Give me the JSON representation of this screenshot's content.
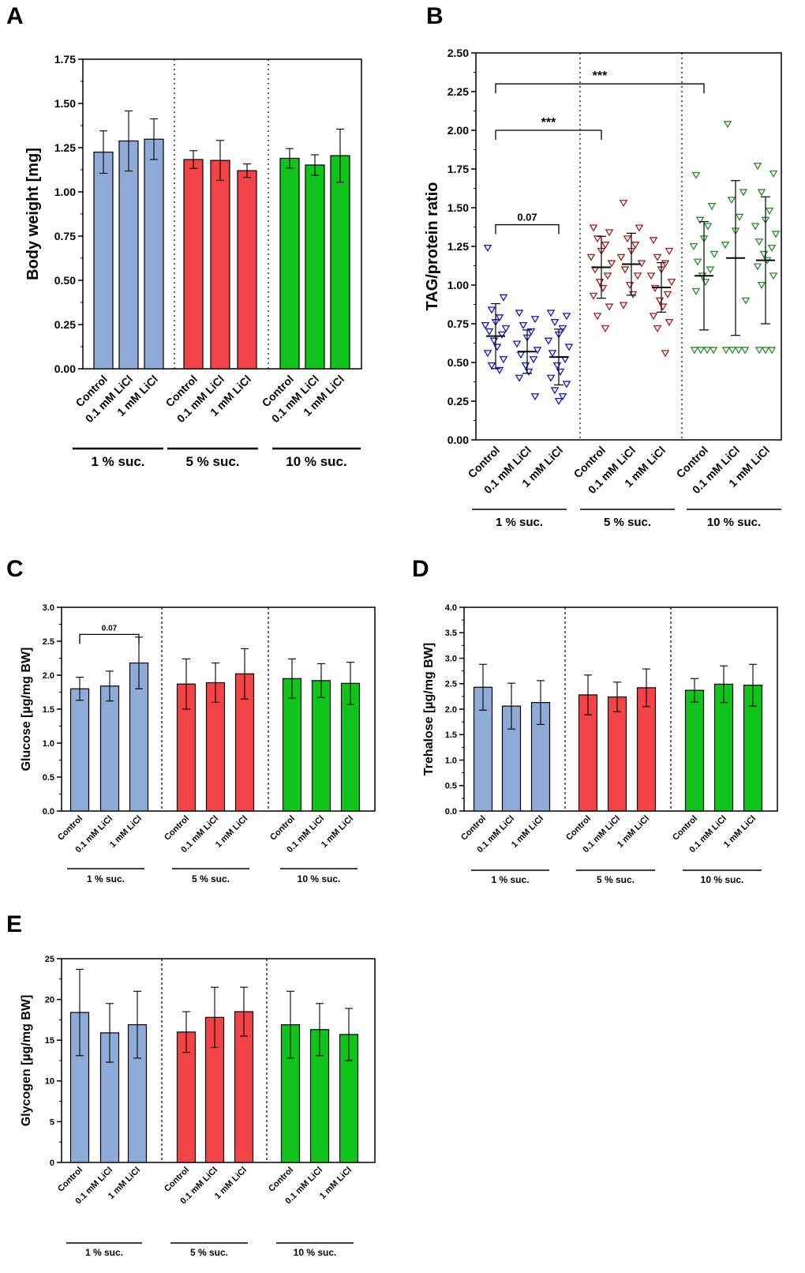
{
  "colors": {
    "blue": "#8eaad6",
    "red": "#f24447",
    "green": "#0fc41b",
    "scatter_blue": "#1515c8",
    "scatter_red": "#a61c1c",
    "scatter_green": "#2a8a2a"
  },
  "chart_data": [
    {
      "id": "A",
      "panel_label": "A",
      "type": "bar",
      "ylabel": "Body weight [mg]",
      "ylim": [
        0,
        1.75
      ],
      "yticks": [
        "0.00",
        "0.25",
        "0.50",
        "0.75",
        "1.00",
        "1.25",
        "1.50",
        "1.75"
      ],
      "categories": [
        "Control",
        "0.1 mM LiCl",
        "1 mM LiCl"
      ],
      "groups": [
        "1 % suc.",
        "5 % suc.",
        "10 % suc."
      ],
      "values": [
        [
          1.225,
          1.288,
          1.298
        ],
        [
          1.183,
          1.178,
          1.12
        ],
        [
          1.19,
          1.152,
          1.205
        ]
      ],
      "errors": [
        [
          0.12,
          0.17,
          0.115
        ],
        [
          0.05,
          0.113,
          0.038
        ],
        [
          0.055,
          0.058,
          0.15
        ]
      ]
    },
    {
      "id": "B",
      "panel_label": "B",
      "type": "scatter",
      "ylabel": "TAG/protein ratio",
      "ylim": [
        0,
        2.5
      ],
      "yticks": [
        "0.00",
        "0.25",
        "0.50",
        "0.75",
        "1.00",
        "1.25",
        "1.50",
        "1.75",
        "2.00",
        "2.25",
        "2.50"
      ],
      "categories": [
        "Control",
        "0.1 mM LiCl",
        "1 mM LiCl"
      ],
      "groups": [
        "1 % suc.",
        "5 % suc.",
        "10 % suc."
      ],
      "means": [
        [
          0.67,
          0.57,
          0.535
        ],
        [
          1.115,
          1.135,
          0.985
        ],
        [
          1.06,
          1.175,
          1.16
        ]
      ],
      "sd": [
        [
          0.21,
          0.14,
          0.18
        ],
        [
          0.2,
          0.2,
          0.16
        ],
        [
          0.35,
          0.5,
          0.41
        ]
      ],
      "points": [
        [
          [
            1.24,
            0.92,
            0.84,
            0.79,
            0.76,
            0.74,
            0.72,
            0.7,
            0.68,
            0.64,
            0.6,
            0.56,
            0.52,
            0.48,
            0.45
          ],
          [
            0.82,
            0.78,
            0.74,
            0.7,
            0.66,
            0.62,
            0.58,
            0.55,
            0.52,
            0.48,
            0.44,
            0.4,
            0.28
          ],
          [
            0.82,
            0.8,
            0.76,
            0.72,
            0.68,
            0.64,
            0.6,
            0.56,
            0.52,
            0.48,
            0.44,
            0.4,
            0.36,
            0.32,
            0.28,
            0.25
          ]
        ],
        [
          [
            1.37,
            1.34,
            1.3,
            1.26,
            1.22,
            1.18,
            1.14,
            1.1,
            1.06,
            1.02,
            0.98,
            0.93,
            0.86,
            0.8,
            0.72
          ],
          [
            1.53,
            1.37,
            1.3,
            1.26,
            1.22,
            1.18,
            1.14,
            1.1,
            1.06,
            1.0,
            0.94,
            0.87
          ],
          [
            1.29,
            1.22,
            1.18,
            1.14,
            1.1,
            1.06,
            1.02,
            0.98,
            0.94,
            0.9,
            0.86,
            0.8,
            0.76,
            0.72,
            0.56
          ]
        ],
        [
          [
            1.71,
            1.51,
            1.42,
            1.38,
            1.3,
            1.25,
            1.2,
            1.15,
            1.1,
            1.06,
            1.02,
            0.96,
            0.58,
            0.58,
            0.58,
            0.58
          ],
          [
            2.04,
            1.6,
            1.55,
            1.44,
            1.35,
            1.26,
            0.9,
            0.58,
            0.58,
            0.58,
            0.58
          ],
          [
            1.77,
            1.72,
            1.6,
            1.48,
            1.42,
            1.38,
            1.33,
            1.28,
            1.24,
            1.2,
            1.16,
            1.12,
            1.06,
            1.0,
            0.58,
            0.58,
            0.58
          ]
        ]
      ],
      "annotations": [
        {
          "label": "0.07",
          "from": [
            0,
            0
          ],
          "to": [
            0,
            2
          ],
          "y": 1.39
        },
        {
          "label": "***",
          "from": [
            0,
            0
          ],
          "to": [
            1,
            0
          ],
          "y": 2.0
        },
        {
          "label": "***",
          "from": [
            0,
            0
          ],
          "to": [
            2,
            0
          ],
          "y": 2.3
        }
      ]
    },
    {
      "id": "C",
      "panel_label": "C",
      "type": "bar",
      "ylabel": "Glucose [µg/mg BW]",
      "ylim": [
        0,
        3.0
      ],
      "yticks": [
        "0.0",
        "0.5",
        "1.0",
        "1.5",
        "2.0",
        "2.5",
        "3.0"
      ],
      "categories": [
        "Control",
        "0.1 mM LiCl",
        "1 mM LiCl"
      ],
      "groups": [
        "1 % suc.",
        "5 % suc.",
        "10 % suc."
      ],
      "values": [
        [
          1.8,
          1.84,
          2.18
        ],
        [
          1.87,
          1.89,
          2.02
        ],
        [
          1.95,
          1.92,
          1.88
        ]
      ],
      "errors": [
        [
          0.17,
          0.22,
          0.38
        ],
        [
          0.37,
          0.29,
          0.37
        ],
        [
          0.29,
          0.25,
          0.31
        ]
      ],
      "annotations": [
        {
          "label": "0.07",
          "from": [
            0,
            0
          ],
          "to": [
            0,
            2
          ],
          "y": 2.6
        }
      ]
    },
    {
      "id": "D",
      "panel_label": "D",
      "type": "bar",
      "ylabel": "Trehalose [µg/mg BW]",
      "ylim": [
        0,
        4.0
      ],
      "yticks": [
        "0.0",
        "0.5",
        "1.0",
        "1.5",
        "2.0",
        "2.5",
        "3.0",
        "3.5",
        "4.0"
      ],
      "categories": [
        "Control",
        "0.1 mM LiCl",
        "1 mM LiCl"
      ],
      "groups": [
        "1 % suc.",
        "5 % suc.",
        "10 % suc."
      ],
      "values": [
        [
          2.43,
          2.06,
          2.13
        ],
        [
          2.28,
          2.24,
          2.42
        ],
        [
          2.37,
          2.49,
          2.47
        ]
      ],
      "errors": [
        [
          0.45,
          0.45,
          0.43
        ],
        [
          0.39,
          0.29,
          0.37
        ],
        [
          0.23,
          0.36,
          0.41
        ]
      ]
    },
    {
      "id": "E",
      "panel_label": "E",
      "type": "bar",
      "ylabel": "Glycogen [µg/mg BW]",
      "ylim": [
        0,
        25
      ],
      "yticks": [
        "0",
        "5",
        "10",
        "15",
        "20",
        "25"
      ],
      "categories": [
        "Control",
        "0.1 mM LiCl",
        "1 mM LiCl"
      ],
      "groups": [
        "1 % suc.",
        "5 % suc.",
        "10 % suc."
      ],
      "values": [
        [
          18.4,
          15.9,
          16.9
        ],
        [
          16.0,
          17.8,
          18.5
        ],
        [
          16.9,
          16.3,
          15.7
        ]
      ],
      "errors": [
        [
          5.3,
          3.6,
          4.1
        ],
        [
          2.5,
          3.7,
          3.0
        ],
        [
          4.1,
          3.2,
          3.2
        ]
      ]
    }
  ]
}
